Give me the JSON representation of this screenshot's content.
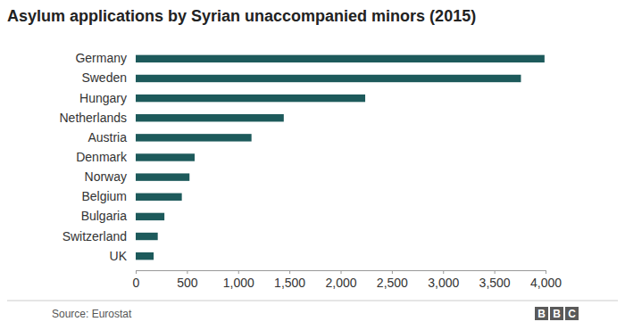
{
  "chart_data": {
    "type": "bar",
    "orientation": "horizontal",
    "title": "Asylum applications by Syrian unaccompanied minors (2015)",
    "categories": [
      "Germany",
      "Sweden",
      "Hungary",
      "Netherlands",
      "Austria",
      "Denmark",
      "Norway",
      "Belgium",
      "Bulgaria",
      "Switzerland",
      "UK"
    ],
    "values": [
      3990,
      3760,
      2240,
      1445,
      1130,
      575,
      525,
      450,
      280,
      215,
      175
    ],
    "color": "#1d5a5b",
    "xlim": [
      0,
      4000
    ],
    "xticks": [
      0,
      500,
      {
        "value": 1000,
        "label": "1,000"
      },
      {
        "value": 1500,
        "label": "1,500"
      },
      {
        "value": 2000,
        "label": "2,000"
      },
      {
        "value": 2500,
        "label": "2,500"
      },
      {
        "value": 3000,
        "label": "3,000"
      },
      {
        "value": 3500,
        "label": "3,500"
      },
      {
        "value": 4000,
        "label": "4,000"
      }
    ],
    "grid": false,
    "source": "Source: Eurostat",
    "logo": "BBC"
  }
}
